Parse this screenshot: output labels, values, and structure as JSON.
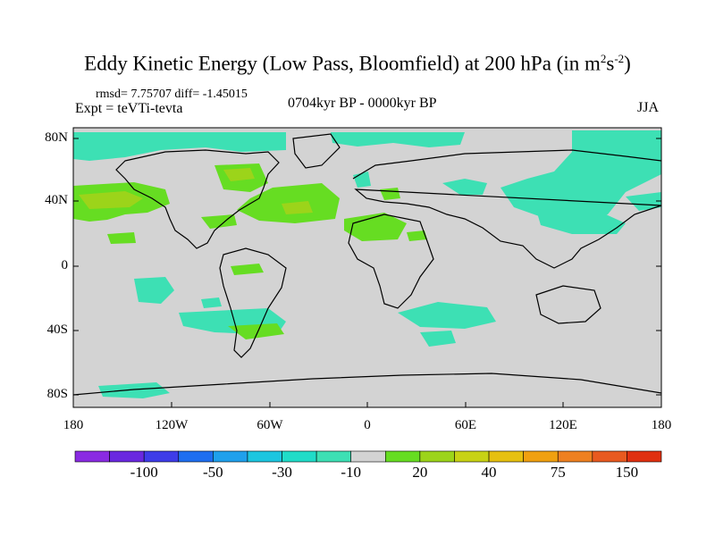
{
  "title": {
    "main": "Eddy Kinetic Energy (Low Pass, Bloomfield) at 200 hPa (in m",
    "sup1": "2",
    "mid": "s",
    "sup2": "-2",
    "end": ")"
  },
  "stats": "rmsd= 7.75707 diff= -1.45015",
  "experiment": "Expt = teVTi-tevta",
  "period": "0704kyr BP - 0000kyr BP",
  "season": "JJA",
  "map": {
    "lat_ticks": [
      "80N",
      "40N",
      "0",
      "40S",
      "80S"
    ],
    "lon_ticks": [
      "180",
      "120W",
      "60W",
      "0",
      "60E",
      "120E",
      "180"
    ],
    "background_color": "#d3d3d3"
  },
  "colorbar": {
    "colors": [
      "#8a2be2",
      "#6a28e0",
      "#3e3ce8",
      "#1e6ef0",
      "#1fa0ec",
      "#1cc6e0",
      "#20dcc8",
      "#3de0b4",
      "#d3d3d3",
      "#66dd22",
      "#9cd41a",
      "#c8d215",
      "#e6c010",
      "#f0a010",
      "#ee8020",
      "#e85a20",
      "#e03010"
    ],
    "labels": [
      "-100",
      "-50",
      "-30",
      "-10",
      "20",
      "40",
      "75",
      "150"
    ]
  }
}
